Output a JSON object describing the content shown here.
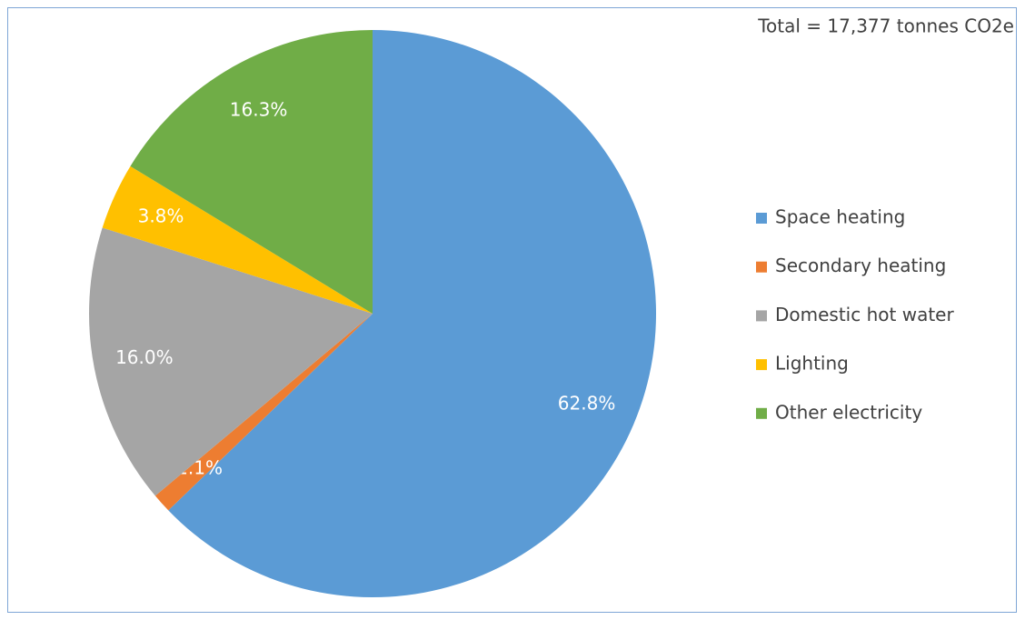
{
  "chart_data": {
    "type": "pie",
    "annotation": "Total = 17,377 tonnes CO2e",
    "categories": [
      "Space heating",
      "Secondary heating",
      "Domestic hot water",
      "Lighting",
      "Other electricity"
    ],
    "values": [
      62.8,
      1.1,
      16.0,
      3.8,
      16.3
    ],
    "value_labels": [
      "62.8%",
      "1.1%",
      "16.0%",
      "3.8%",
      "16.3%"
    ],
    "colors": [
      "#5b9bd5",
      "#ed7d31",
      "#a5a5a5",
      "#ffc000",
      "#70ad47"
    ],
    "legend": "right"
  }
}
